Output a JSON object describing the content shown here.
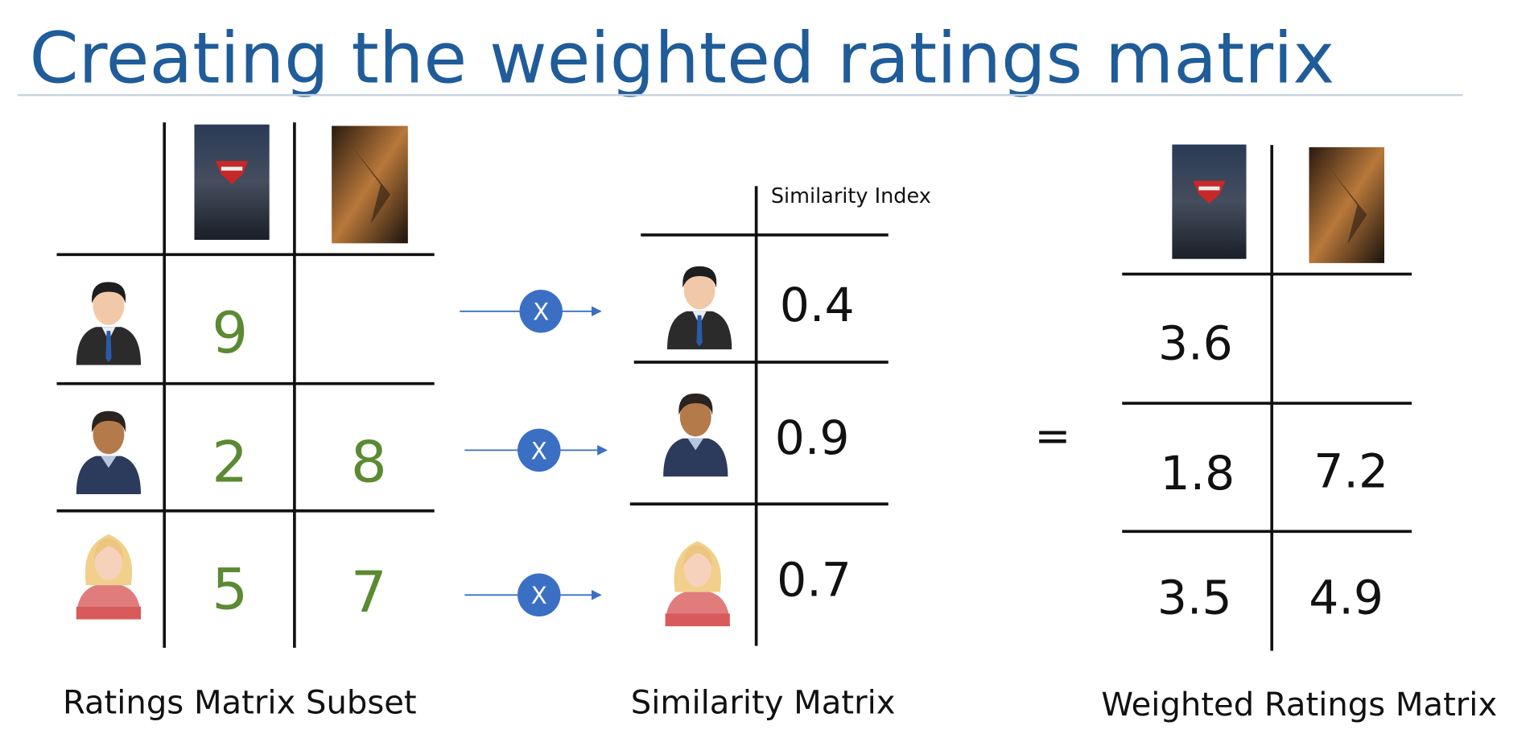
{
  "title": "Creating the weighted ratings matrix",
  "ratings_matrix": {
    "caption": "Ratings Matrix Subset",
    "rows": [
      [
        9,
        null
      ],
      [
        2,
        8
      ],
      [
        5,
        7
      ]
    ]
  },
  "operator": "X",
  "similarity_matrix": {
    "header": "Similarity Index",
    "caption": "Similarity Matrix",
    "values": [
      0.4,
      0.9,
      0.7
    ]
  },
  "equals": "=",
  "weighted_matrix": {
    "caption": "Weighted Ratings Matrix",
    "rows": [
      [
        3.6,
        null
      ],
      [
        1.8,
        7.2
      ],
      [
        3.5,
        4.9
      ]
    ]
  }
}
